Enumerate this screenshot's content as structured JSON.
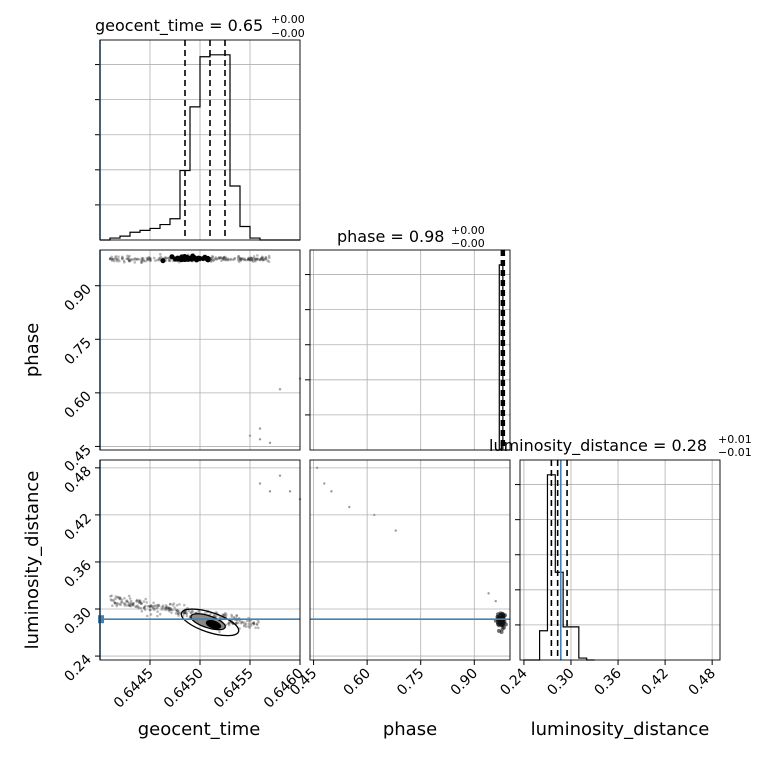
{
  "chart_data": {
    "type": "corner",
    "parameters": [
      "geocent_time",
      "phase",
      "luminosity_distance"
    ],
    "titles": [
      {
        "param": "geocent_time",
        "text": "geocent_time = 0.65",
        "plus": "+0.00",
        "minus": "−0.00",
        "median": 0.6451,
        "q16": 0.64485,
        "q84": 0.64525
      },
      {
        "param": "phase",
        "text": "phase = 0.98",
        "plus": "+0.00",
        "minus": "−0.00",
        "median": 0.98,
        "q16": 0.976,
        "q84": 0.984
      },
      {
        "param": "luminosity_distance",
        "text": "luminosity_distance = 0.28",
        "plus": "+0.01",
        "minus": "−0.01",
        "median": 0.283,
        "q16": 0.275,
        "q84": 0.295
      }
    ],
    "axes": {
      "geocent_time": {
        "range": [
          0.644,
          0.646
        ],
        "ticks": [
          0.6445,
          0.645,
          0.6455,
          0.646
        ],
        "tick_labels": [
          "0.6445",
          "0.6450",
          "0.6455",
          "0.6460"
        ]
      },
      "phase": {
        "range": [
          0.44,
          1.0
        ],
        "ticks": [
          0.45,
          0.6,
          0.75,
          0.9
        ],
        "tick_labels": [
          "0.45",
          "0.60",
          "0.75",
          "0.90"
        ]
      },
      "luminosity_distance": {
        "range": [
          0.235,
          0.49
        ],
        "ticks": [
          0.24,
          0.3,
          0.36,
          0.42,
          0.48
        ],
        "tick_labels": [
          "0.24",
          "0.30",
          "0.36",
          "0.42",
          "0.48"
        ]
      }
    },
    "truth": {
      "geocent_time": 0.644,
      "luminosity_distance": 0.287
    },
    "histograms": {
      "geocent_time": {
        "edges": [
          0.644,
          0.6441,
          0.6442,
          0.6443,
          0.6444,
          0.6445,
          0.6446,
          0.6447,
          0.6448,
          0.6449,
          0.645,
          0.6451,
          0.6452,
          0.6453,
          0.6454,
          0.6455,
          0.6456,
          0.6457,
          0.6458,
          0.6459,
          0.646
        ],
        "counts": [
          0,
          1,
          2,
          4,
          5,
          6,
          8,
          11,
          36,
          69,
          95,
          96,
          96,
          28,
          7,
          1,
          0,
          0,
          0,
          0
        ]
      },
      "phase": {
        "edges": [
          0.96,
          0.97,
          0.98,
          0.99,
          1.0
        ],
        "counts": [
          0,
          95,
          0,
          0
        ]
      },
      "luminosity_distance": {
        "edges": [
          0.24,
          0.25,
          0.26,
          0.27,
          0.28,
          0.29,
          0.3,
          0.31,
          0.32,
          0.33
        ],
        "counts": [
          0,
          0,
          15,
          95,
          45,
          17,
          17,
          1,
          0
        ]
      }
    },
    "grid": true
  }
}
